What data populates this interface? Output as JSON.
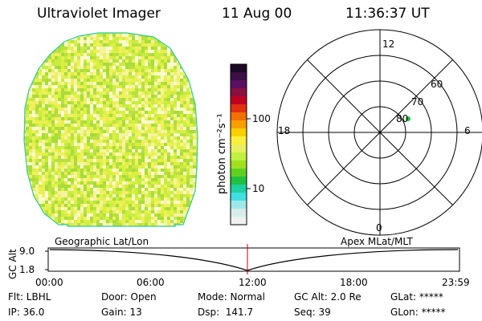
{
  "header": {
    "instrument": "Ultraviolet Imager",
    "date": "11 Aug 00",
    "time": "11:36:37 UT"
  },
  "colorbar": {
    "unit_label": "photon cm⁻²s⁻¹",
    "tick_labels": [
      "100",
      "10"
    ],
    "colors": [
      "#1a0a26",
      "#3a1046",
      "#5a1060",
      "#8a1040",
      "#c00020",
      "#e03010",
      "#f07000",
      "#f8a000",
      "#f8d000",
      "#f8f040",
      "#e8f060",
      "#c0f040",
      "#a0e020",
      "#60d020",
      "#20c040",
      "#20d0a0",
      "#40e0e0",
      "#a0e8e8",
      "#d8ecec",
      "#f0f0f0"
    ]
  },
  "polar_plot": {
    "clock_labels": [
      "12",
      "18",
      "6",
      "0"
    ],
    "latitude_labels": [
      "60",
      "70",
      "80"
    ],
    "spacecraft_marker_color": "#20c040"
  },
  "timeline": {
    "left_title": "Geographic Lat/Lon",
    "right_title": "Apex MLat/MLT",
    "axis_label": "GC Alt",
    "y_ticks": [
      "9.0",
      "1.8"
    ],
    "x_ticks": [
      "00:00",
      "06:00",
      "12:00",
      "18:00",
      "23:59"
    ],
    "current_time_marker_color": "#c00000"
  },
  "status": {
    "flt": "Flt: LBHL",
    "ip": "IP: 36.0",
    "door": "Door: Open",
    "gain": "Gain: 13",
    "mode": "Mode: Normal",
    "dsp": "Dsp:  141.7",
    "gc_alt": "GC Alt: 2.0 Re",
    "seq": "Seq: 39",
    "glat": "GLat: *****",
    "glon": "GLon: *****"
  },
  "image": {
    "palette": [
      "#f0f060",
      "#e8f050",
      "#d8f040",
      "#c8ec40",
      "#f4f4a0",
      "#fafad0",
      "#b8e040",
      "#a8dc38"
    ]
  }
}
